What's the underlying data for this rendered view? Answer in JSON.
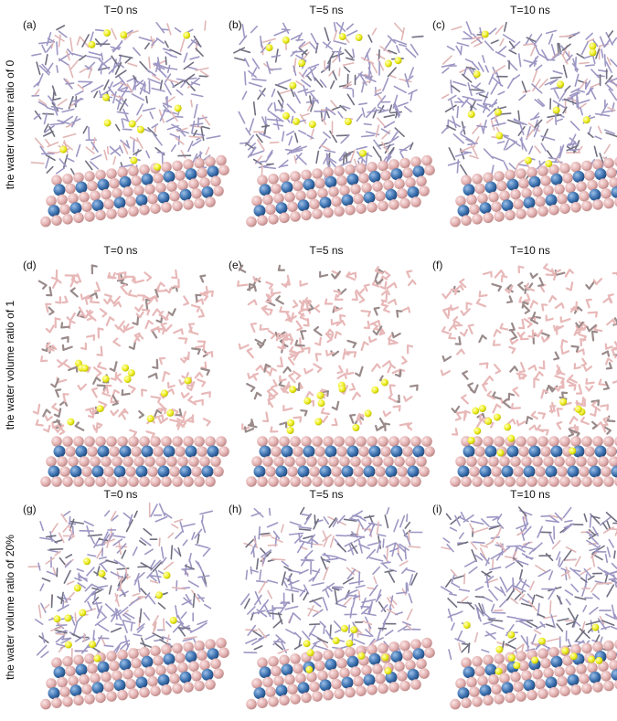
{
  "rows": [
    {
      "label": "the water volume ratio of 0",
      "panels": [
        {
          "tag": "(a)",
          "title": "T=0 ns"
        },
        {
          "tag": "(b)",
          "title": "T=5 ns"
        },
        {
          "tag": "(c)",
          "title": "T=10 ns"
        }
      ]
    },
    {
      "label": "the water volume ratio of 1",
      "panels": [
        {
          "tag": "(d)",
          "title": "T=0 ns"
        },
        {
          "tag": "(e)",
          "title": "T=5 ns"
        },
        {
          "tag": "(f)",
          "title": "T=10 ns"
        }
      ]
    },
    {
      "label": "the water volume ratio of 20%",
      "panels": [
        {
          "tag": "(g)",
          "title": "T=0 ns"
        },
        {
          "tag": "(h)",
          "title": "T=5 ns"
        },
        {
          "tag": "(i)",
          "title": "T=10 ns"
        }
      ]
    }
  ]
}
